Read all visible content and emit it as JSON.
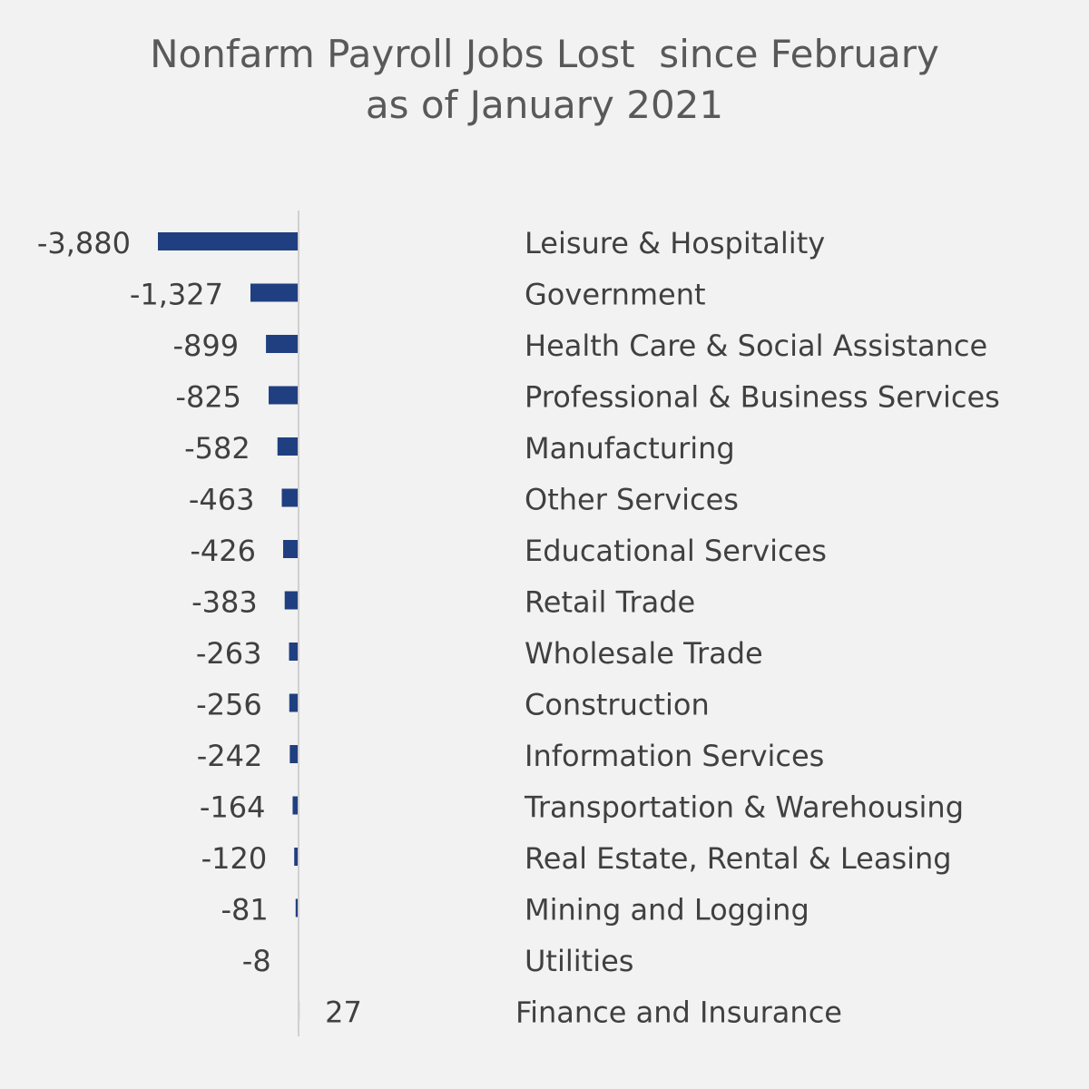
{
  "chart_data": {
    "type": "bar",
    "orientation": "horizontal",
    "title_lines": [
      "Nonfarm Payroll Jobs Lost  since February",
      "as of January 2021"
    ],
    "categories": [
      "Leisure & Hospitality",
      "Government",
      "Health Care & Social Assistance",
      "Professional & Business Services",
      "Manufacturing",
      "Other Services",
      "Educational Services",
      "Retail Trade",
      "Wholesale Trade",
      "Construction",
      "Information Services",
      "Transportation & Warehousing",
      "Real Estate, Rental & Leasing",
      "Mining and Logging",
      "Utilities",
      "Finance and Insurance"
    ],
    "values": [
      -3880,
      -1327,
      -899,
      -825,
      -582,
      -463,
      -426,
      -383,
      -263,
      -256,
      -242,
      -164,
      -120,
      -81,
      -8,
      27
    ],
    "value_labels": [
      "-3,880",
      "-1,327",
      "-899",
      "-825",
      "-582",
      "-463",
      "-426",
      "-383",
      "-263",
      "-256",
      "-242",
      "-164",
      "-120",
      "-81",
      "-8",
      "27"
    ],
    "bar_color": "#1f3f80",
    "axis_color": "#d0d0d0",
    "grid": false,
    "legend": "none"
  }
}
